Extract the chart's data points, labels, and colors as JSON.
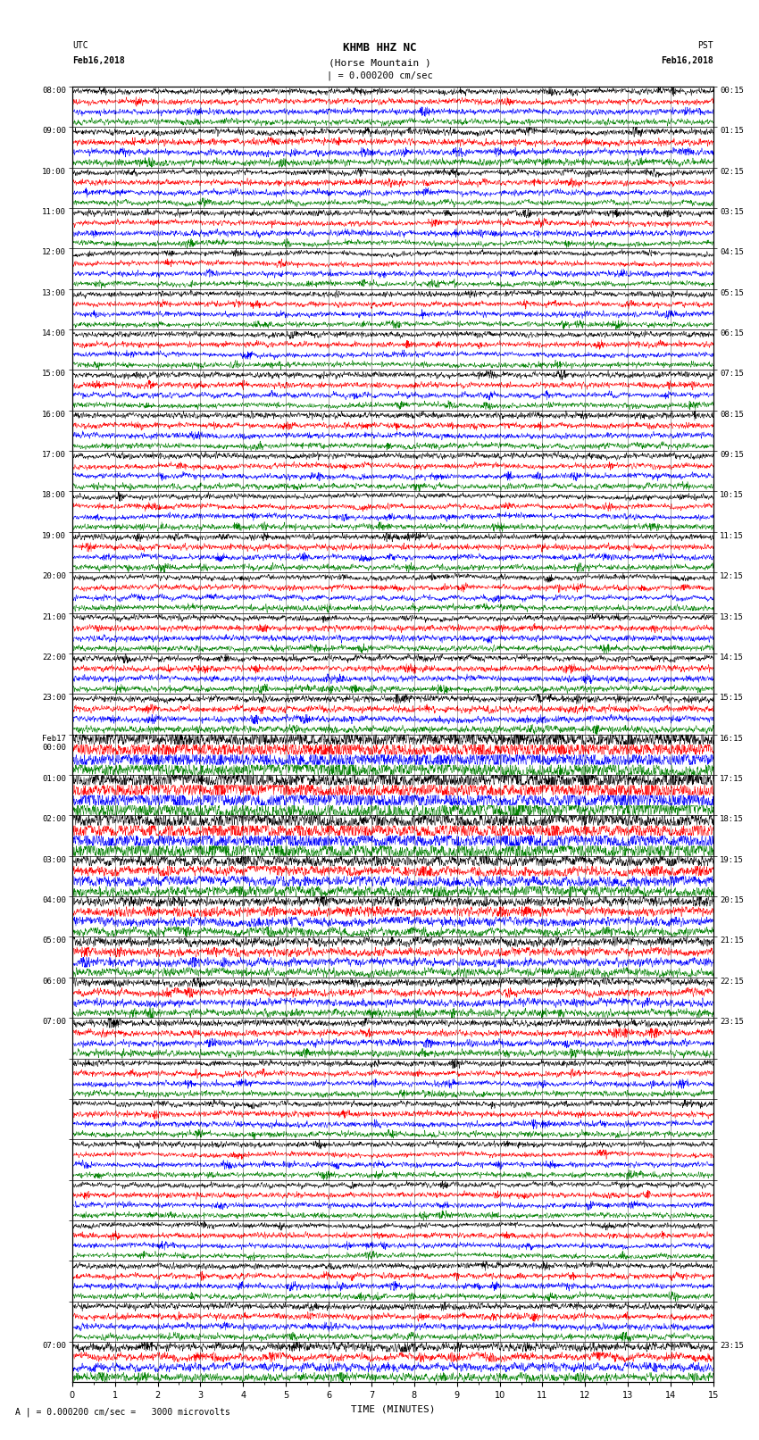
{
  "title_line1": "KHMB HHZ NC",
  "title_line2": "(Horse Mountain )",
  "title_scale": "| = 0.000200 cm/sec",
  "label_left_top": "UTC",
  "label_left_date": "Feb16,2018",
  "label_right_top": "PST",
  "label_right_date": "Feb16,2018",
  "bottom_note": "A | = 0.000200 cm/sec =   3000 microvolts",
  "xlabel": "TIME (MINUTES)",
  "trace_colors": [
    "#000000",
    "#ff0000",
    "#0000ff",
    "#008000"
  ],
  "num_rows": 32,
  "traces_per_row": 4,
  "minutes_per_row": 15,
  "utc_labels": [
    "08:00",
    "09:00",
    "10:00",
    "11:00",
    "12:00",
    "13:00",
    "14:00",
    "15:00",
    "16:00",
    "17:00",
    "18:00",
    "19:00",
    "20:00",
    "21:00",
    "22:00",
    "23:00",
    "Feb17\n00:00",
    "01:00",
    "02:00",
    "03:00",
    "04:00",
    "05:00",
    "06:00",
    "07:00",
    "",
    "",
    "",
    "",
    "",
    "",
    "",
    "07:00"
  ],
  "pst_labels": [
    "00:15",
    "01:15",
    "02:15",
    "03:15",
    "04:15",
    "05:15",
    "06:15",
    "07:15",
    "08:15",
    "09:15",
    "10:15",
    "11:15",
    "12:15",
    "13:15",
    "14:15",
    "15:15",
    "16:15",
    "17:15",
    "18:15",
    "19:15",
    "20:15",
    "21:15",
    "22:15",
    "23:15",
    "",
    "",
    "",
    "",
    "",
    "",
    "",
    "23:15"
  ],
  "amplitude_by_row": [
    0.3,
    0.35,
    0.3,
    0.3,
    0.28,
    0.28,
    0.28,
    0.3,
    0.3,
    0.3,
    0.3,
    0.3,
    0.3,
    0.3,
    0.32,
    0.35,
    0.8,
    0.9,
    0.85,
    0.6,
    0.5,
    0.45,
    0.4,
    0.35,
    0.3,
    0.3,
    0.28,
    0.28,
    0.28,
    0.3,
    0.32,
    0.45
  ],
  "fig_width": 8.5,
  "fig_height": 16.13,
  "dpi": 100
}
